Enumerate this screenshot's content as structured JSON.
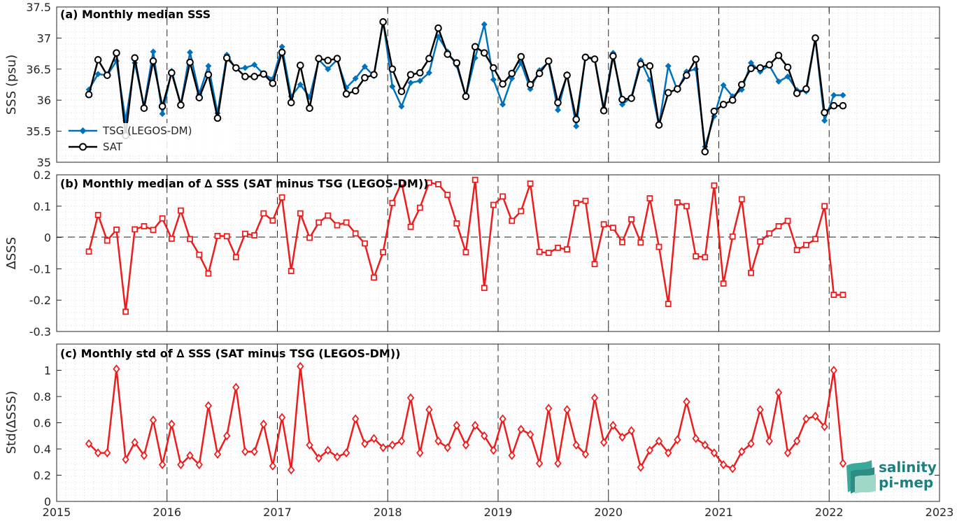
{
  "chart_data": [
    {
      "type": "line",
      "title": "(a) Monthly median SSS",
      "ylabel": "SSS (psu)",
      "xlabel": "",
      "xlim": [
        2015,
        2023
      ],
      "ylim": [
        35,
        37.5
      ],
      "x_ticks": [
        "2015",
        "2016",
        "2017",
        "2018",
        "2019",
        "2020",
        "2021",
        "2022",
        "2023"
      ],
      "y_ticks": [
        "35",
        "35.5",
        "36",
        "36.5",
        "37",
        "37.5"
      ],
      "grid": true,
      "legend": "lower-left",
      "series": [
        {
          "name": "TSG (LEGOS-DM)",
          "color": "#0072bd",
          "marker": "diamond-filled",
          "x": [
            2015.292,
            2015.375,
            2015.458,
            2015.542,
            2015.625,
            2015.708,
            2015.792,
            2015.875,
            2015.958,
            2016.042,
            2016.125,
            2016.208,
            2016.292,
            2016.375,
            2016.458,
            2016.542,
            2016.625,
            2016.708,
            2016.792,
            2016.875,
            2016.958,
            2017.042,
            2017.125,
            2017.208,
            2017.292,
            2017.375,
            2017.458,
            2017.542,
            2017.625,
            2017.708,
            2017.792,
            2017.875,
            2017.958,
            2018.042,
            2018.125,
            2018.208,
            2018.292,
            2018.375,
            2018.458,
            2018.542,
            2018.625,
            2018.708,
            2018.792,
            2018.875,
            2018.958,
            2019.042,
            2019.125,
            2019.208,
            2019.292,
            2019.375,
            2019.458,
            2019.542,
            2019.625,
            2019.708,
            2019.792,
            2019.875,
            2019.958,
            2020.042,
            2020.125,
            2020.208,
            2020.292,
            2020.375,
            2020.458,
            2020.542,
            2020.625,
            2020.708,
            2020.792,
            2020.875,
            2020.958,
            2021.042,
            2021.125,
            2021.208,
            2021.292,
            2021.375,
            2021.458,
            2021.542,
            2021.625,
            2021.708,
            2021.792,
            2021.875,
            2021.958,
            2022.042,
            2022.125
          ],
          "values": [
            36.17,
            36.42,
            36.4,
            36.63,
            35.67,
            36.6,
            35.9,
            36.78,
            35.78,
            36.47,
            35.93,
            36.77,
            36.1,
            36.55,
            35.79,
            36.73,
            36.5,
            36.52,
            36.57,
            36.42,
            36.34,
            36.86,
            36.06,
            36.25,
            36.05,
            36.65,
            36.5,
            36.65,
            36.2,
            36.35,
            36.54,
            36.39,
            37.27,
            36.22,
            35.9,
            36.28,
            36.31,
            36.44,
            37.02,
            36.78,
            36.56,
            36.06,
            36.68,
            37.22,
            36.33,
            35.93,
            36.35,
            36.6,
            36.18,
            36.48,
            36.61,
            35.84,
            36.42,
            35.58,
            36.7,
            36.67,
            35.87,
            36.76,
            35.93,
            36.05,
            36.64,
            36.32,
            35.59,
            36.55,
            36.16,
            36.46,
            36.5,
            35.25,
            35.74,
            36.24,
            36.06,
            36.17,
            36.6,
            36.46,
            36.56,
            36.3,
            36.38,
            36.16,
            36.14,
            36.99,
            35.67,
            36.08,
            36.08
          ]
        },
        {
          "name": "SAT",
          "color": "#000000",
          "marker": "circle-open",
          "x": [
            2015.292,
            2015.375,
            2015.458,
            2015.542,
            2015.625,
            2015.708,
            2015.792,
            2015.875,
            2015.958,
            2016.042,
            2016.125,
            2016.208,
            2016.292,
            2016.375,
            2016.458,
            2016.542,
            2016.625,
            2016.708,
            2016.792,
            2016.875,
            2016.958,
            2017.042,
            2017.125,
            2017.208,
            2017.292,
            2017.375,
            2017.458,
            2017.542,
            2017.625,
            2017.708,
            2017.792,
            2017.875,
            2017.958,
            2018.042,
            2018.125,
            2018.208,
            2018.292,
            2018.375,
            2018.458,
            2018.542,
            2018.625,
            2018.708,
            2018.792,
            2018.875,
            2018.958,
            2019.042,
            2019.125,
            2019.208,
            2019.292,
            2019.375,
            2019.458,
            2019.542,
            2019.625,
            2019.708,
            2019.792,
            2019.875,
            2019.958,
            2020.042,
            2020.125,
            2020.208,
            2020.292,
            2020.375,
            2020.458,
            2020.542,
            2020.625,
            2020.708,
            2020.792,
            2020.875,
            2020.958,
            2021.042,
            2021.125,
            2021.208,
            2021.292,
            2021.375,
            2021.458,
            2021.542,
            2021.625,
            2021.708,
            2021.792,
            2021.875,
            2021.958,
            2022.042,
            2022.125
          ],
          "values": [
            36.09,
            36.65,
            36.4,
            36.76,
            35.43,
            36.68,
            35.87,
            36.63,
            35.9,
            36.44,
            35.92,
            36.61,
            36.04,
            36.41,
            35.71,
            36.68,
            36.52,
            36.38,
            36.38,
            36.42,
            36.27,
            36.77,
            35.96,
            36.56,
            35.87,
            36.67,
            36.64,
            36.67,
            36.1,
            36.15,
            36.36,
            36.41,
            37.26,
            36.5,
            36.14,
            36.41,
            36.44,
            36.67,
            37.16,
            36.74,
            36.6,
            36.06,
            36.86,
            36.76,
            36.52,
            36.26,
            36.43,
            36.7,
            36.25,
            36.43,
            36.63,
            35.96,
            36.4,
            35.69,
            36.69,
            36.66,
            35.83,
            36.71,
            36.01,
            36.03,
            36.58,
            36.55,
            35.6,
            36.12,
            36.18,
            36.4,
            36.66,
            35.17,
            35.82,
            35.93,
            36.0,
            36.25,
            36.51,
            36.52,
            36.57,
            36.72,
            36.53,
            36.11,
            36.18,
            37.0,
            35.8,
            35.91,
            35.91
          ]
        }
      ]
    },
    {
      "type": "line",
      "title": "(b) Monthly median of ∆ SSS (SAT minus TSG (LEGOS-DM))",
      "ylabel": "∆SSS",
      "xlabel": "",
      "xlim": [
        2015,
        2023
      ],
      "ylim": [
        -0.3,
        0.2
      ],
      "x_ticks": [
        "2015",
        "2016",
        "2017",
        "2018",
        "2019",
        "2020",
        "2021",
        "2022",
        "2023"
      ],
      "y_ticks": [
        "-0.3",
        "-0.2",
        "-0.1",
        "0",
        "0.1",
        "0.2"
      ],
      "grid": true,
      "zero_line": true,
      "series": [
        {
          "color": "#ee1c1c",
          "marker": "square-open",
          "x": [
            2015.292,
            2015.375,
            2015.458,
            2015.542,
            2015.625,
            2015.708,
            2015.792,
            2015.875,
            2015.958,
            2016.042,
            2016.125,
            2016.208,
            2016.292,
            2016.375,
            2016.458,
            2016.542,
            2016.625,
            2016.708,
            2016.792,
            2016.875,
            2016.958,
            2017.042,
            2017.125,
            2017.208,
            2017.292,
            2017.375,
            2017.458,
            2017.542,
            2017.625,
            2017.708,
            2017.792,
            2017.875,
            2017.958,
            2018.042,
            2018.125,
            2018.208,
            2018.292,
            2018.375,
            2018.458,
            2018.542,
            2018.625,
            2018.708,
            2018.792,
            2018.875,
            2018.958,
            2019.042,
            2019.125,
            2019.208,
            2019.292,
            2019.375,
            2019.458,
            2019.542,
            2019.625,
            2019.708,
            2019.792,
            2019.875,
            2019.958,
            2020.042,
            2020.125,
            2020.208,
            2020.292,
            2020.375,
            2020.458,
            2020.542,
            2020.625,
            2020.708,
            2020.792,
            2020.875,
            2020.958,
            2021.042,
            2021.125,
            2021.208,
            2021.292,
            2021.375,
            2021.458,
            2021.542,
            2021.625,
            2021.708,
            2021.792,
            2021.875,
            2021.958,
            2022.042,
            2022.125
          ],
          "values": [
            -0.045,
            0.072,
            -0.01,
            0.025,
            -0.237,
            0.026,
            0.036,
            0.024,
            0.061,
            -0.004,
            0.086,
            -0.005,
            -0.055,
            -0.115,
            0.005,
            0.004,
            -0.063,
            0.012,
            0.007,
            0.077,
            0.054,
            0.128,
            -0.107,
            0.077,
            -0.001,
            0.048,
            0.07,
            0.039,
            0.048,
            0.013,
            -0.019,
            -0.128,
            -0.047,
            0.11,
            0.175,
            0.034,
            0.095,
            0.175,
            0.17,
            0.136,
            0.045,
            -0.047,
            0.184,
            -0.161,
            0.104,
            0.131,
            0.053,
            0.084,
            0.172,
            -0.046,
            -0.049,
            -0.033,
            -0.038,
            0.11,
            0.117,
            -0.085,
            0.042,
            0.031,
            -0.015,
            0.058,
            -0.016,
            0.125,
            -0.03,
            -0.212,
            0.112,
            0.1,
            -0.06,
            -0.063,
            0.166,
            -0.147,
            0.003,
            0.122,
            -0.113,
            -0.013,
            0.013,
            0.036,
            0.053,
            -0.04,
            -0.024,
            -0.005,
            0.1,
            -0.183,
            -0.183
          ]
        }
      ]
    },
    {
      "type": "line",
      "title": "(c) Monthly std of ∆ SSS (SAT minus TSG (LEGOS-DM))",
      "ylabel": "Std(∆SSS)",
      "xlabel": "",
      "xlim": [
        2015,
        2023
      ],
      "ylim": [
        0,
        1.2
      ],
      "x_ticks": [
        "2015",
        "2016",
        "2017",
        "2018",
        "2019",
        "2020",
        "2021",
        "2022",
        "2023"
      ],
      "y_ticks": [
        "0",
        "0.2",
        "0.4",
        "0.6",
        "0.8",
        "1"
      ],
      "grid": true,
      "series": [
        {
          "color": "#ee1c1c",
          "marker": "diamond-open",
          "x": [
            2015.292,
            2015.375,
            2015.458,
            2015.542,
            2015.625,
            2015.708,
            2015.792,
            2015.875,
            2015.958,
            2016.042,
            2016.125,
            2016.208,
            2016.292,
            2016.375,
            2016.458,
            2016.542,
            2016.625,
            2016.708,
            2016.792,
            2016.875,
            2016.958,
            2017.042,
            2017.125,
            2017.208,
            2017.292,
            2017.375,
            2017.458,
            2017.542,
            2017.625,
            2017.708,
            2017.792,
            2017.875,
            2017.958,
            2018.042,
            2018.125,
            2018.208,
            2018.292,
            2018.375,
            2018.458,
            2018.542,
            2018.625,
            2018.708,
            2018.792,
            2018.875,
            2018.958,
            2019.042,
            2019.125,
            2019.208,
            2019.292,
            2019.375,
            2019.458,
            2019.542,
            2019.625,
            2019.708,
            2019.792,
            2019.875,
            2019.958,
            2020.042,
            2020.125,
            2020.208,
            2020.292,
            2020.375,
            2020.458,
            2020.542,
            2020.625,
            2020.708,
            2020.792,
            2020.875,
            2020.958,
            2021.042,
            2021.125,
            2021.208,
            2021.292,
            2021.375,
            2021.458,
            2021.542,
            2021.625,
            2021.708,
            2021.792,
            2021.875,
            2021.958,
            2022.042,
            2022.125
          ],
          "values": [
            0.44,
            0.37,
            0.37,
            1.01,
            0.32,
            0.45,
            0.35,
            0.62,
            0.28,
            0.59,
            0.28,
            0.35,
            0.28,
            0.73,
            0.36,
            0.5,
            0.87,
            0.38,
            0.38,
            0.59,
            0.27,
            0.64,
            0.24,
            1.03,
            0.43,
            0.33,
            0.39,
            0.34,
            0.37,
            0.63,
            0.44,
            0.48,
            0.41,
            0.43,
            0.46,
            0.79,
            0.37,
            0.7,
            0.46,
            0.41,
            0.58,
            0.43,
            0.58,
            0.5,
            0.39,
            0.63,
            0.35,
            0.55,
            0.51,
            0.29,
            0.71,
            0.29,
            0.7,
            0.43,
            0.36,
            0.79,
            0.45,
            0.58,
            0.49,
            0.54,
            0.26,
            0.39,
            0.46,
            0.37,
            0.47,
            0.76,
            0.48,
            0.43,
            0.37,
            0.28,
            0.25,
            0.38,
            0.44,
            0.7,
            0.46,
            0.83,
            0.37,
            0.46,
            0.63,
            0.65,
            0.57,
            1.0,
            0.29
          ]
        }
      ]
    }
  ],
  "logo": {
    "line1": "salinity",
    "line2": "pi-mep",
    "color": "#1f7f80"
  }
}
